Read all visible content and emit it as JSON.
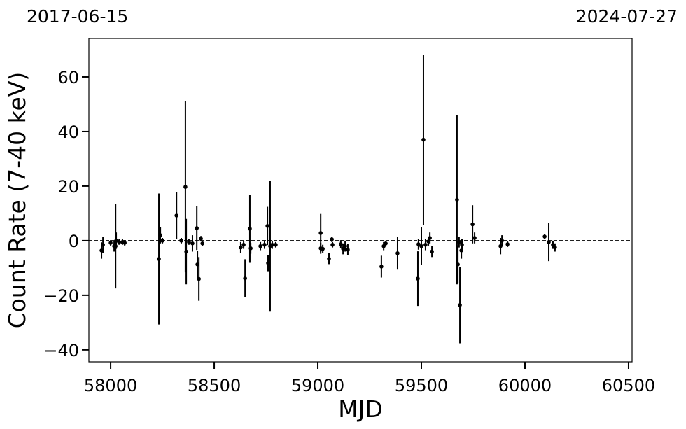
{
  "chart_data": {
    "type": "scatter",
    "annotations": [
      "2017-06-15",
      "2024-07-27"
    ],
    "xlabel": "MJD",
    "ylabel": "Count Rate (7-40 keV)",
    "color": "#000000",
    "hline": 0,
    "xlim": [
      57895,
      60517
    ],
    "ylim": [
      -44.4,
      74.1
    ],
    "xticks": [
      58000,
      58500,
      59000,
      59500,
      60000,
      60500
    ],
    "yticks": [
      {
        "value": -40,
        "label": "−40"
      },
      {
        "value": -20,
        "label": "−20"
      },
      0,
      20,
      40,
      60
    ],
    "x": [
      57956,
      57963,
      58000,
      58017,
      58024,
      58027,
      58041,
      58057,
      58068,
      58233,
      58240,
      58250,
      58318,
      58341,
      58361,
      58365,
      58378,
      58395,
      58416,
      58419,
      58426,
      58436,
      58443,
      58628,
      58642,
      58649,
      58672,
      58676,
      58723,
      58743,
      58757,
      58760,
      58770,
      58780,
      58797,
      59014,
      59014,
      59024,
      59054,
      59068,
      59071,
      59111,
      59122,
      59132,
      59145,
      59307,
      59318,
      59328,
      59385,
      59483,
      59486,
      59500,
      59510,
      59520,
      59534,
      59541,
      59551,
      59672,
      59676,
      59682,
      59686,
      59693,
      59696,
      59747,
      59757,
      59882,
      59889,
      59916,
      60095,
      60115,
      60135,
      60145
    ],
    "values": [
      -3.6,
      -1.5,
      -0.8,
      -2,
      -2,
      0,
      -0.5,
      -0.5,
      -0.8,
      -6.7,
      2,
      0,
      9.2,
      0,
      19.7,
      -4,
      -0.5,
      -1,
      4.6,
      -8.7,
      -14,
      0.7,
      -1,
      -2.5,
      -1.5,
      -13.8,
      4.4,
      -2.8,
      -2,
      -1.5,
      5.4,
      -8.2,
      -2,
      -1.5,
      -1.5,
      2.8,
      -2.8,
      -3,
      -6.6,
      0.5,
      -1.5,
      -1.3,
      -3,
      -2,
      -3.3,
      -9.5,
      -2,
      -1,
      -4.6,
      -13.9,
      -1.3,
      -2,
      37,
      -1.5,
      -0.3,
      1,
      -4,
      15,
      -8.7,
      -0.5,
      -23.6,
      -3.6,
      -1.5,
      6,
      1,
      -2,
      0,
      -1.3,
      1.5,
      -0.5,
      -1.5,
      -2.5
    ],
    "errors": [
      3,
      3,
      1,
      2,
      15.5,
      3,
      1,
      1,
      1,
      24,
      3,
      1,
      8.5,
      1,
      31.3,
      12,
      1,
      3,
      8,
      5,
      8,
      1,
      1,
      2,
      1.5,
      7,
      12.5,
      2,
      1.5,
      1.5,
      7,
      3,
      24,
      1.5,
      1,
      7,
      2,
      1.5,
      2,
      1,
      1,
      1.5,
      2,
      2,
      2,
      4,
      1.5,
      1,
      6,
      10,
      2,
      7,
      31.2,
      2,
      1.5,
      2,
      2,
      31,
      7,
      2,
      14,
      3,
      2,
      7,
      2,
      3,
      2,
      1,
      1,
      7,
      1.5,
      1.5
    ]
  }
}
